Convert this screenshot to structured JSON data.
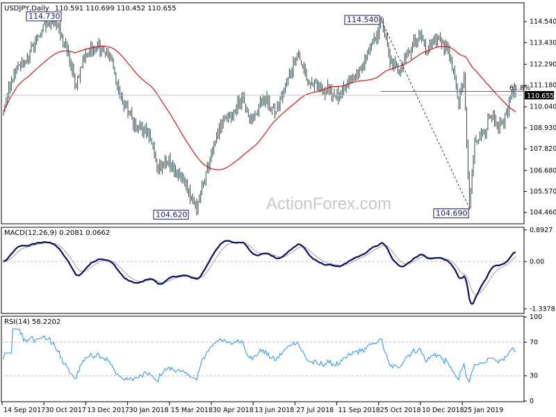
{
  "chart_data": [
    {
      "type": "ohlc",
      "title": "USDJPY,Daily",
      "ohlc_label": "110.591 110.699 110.452 110.655",
      "ylim": [
        103.9,
        115.5
      ],
      "y_ticks": [
        114.54,
        113.43,
        112.29,
        111.18,
        110.04,
        108.93,
        107.82,
        106.68,
        105.57,
        104.46
      ],
      "current_price": 110.655,
      "x_labels": [
        "14 Sep 2017",
        "30 Oct 2017",
        "13 Dec 2017",
        "30 Jan 2018",
        "15 Mar 2018",
        "30 Apr 2018",
        "13 Jun 2018",
        "27 Jul 2018",
        "11 Sep 2018",
        "25 Oct 2018",
        "10 Dec 2018",
        "25 Jan 2019"
      ],
      "price_anchors": [
        {
          "i": 0,
          "v": 109.8
        },
        {
          "i": 8,
          "v": 111.8
        },
        {
          "i": 18,
          "v": 112.6
        },
        {
          "i": 26,
          "v": 113.8
        },
        {
          "i": 34,
          "v": 114.5
        },
        {
          "i": 38,
          "v": 114.73
        },
        {
          "i": 48,
          "v": 113.0
        },
        {
          "i": 54,
          "v": 111.2
        },
        {
          "i": 62,
          "v": 112.8
        },
        {
          "i": 72,
          "v": 113.3
        },
        {
          "i": 80,
          "v": 112.7
        },
        {
          "i": 90,
          "v": 110.3
        },
        {
          "i": 100,
          "v": 109.0
        },
        {
          "i": 110,
          "v": 108.6
        },
        {
          "i": 116,
          "v": 106.8
        },
        {
          "i": 124,
          "v": 107.2
        },
        {
          "i": 134,
          "v": 106.2
        },
        {
          "i": 140,
          "v": 105.6
        },
        {
          "i": 146,
          "v": 104.62
        },
        {
          "i": 154,
          "v": 106.8
        },
        {
          "i": 164,
          "v": 109.2
        },
        {
          "i": 172,
          "v": 109.4
        },
        {
          "i": 180,
          "v": 110.6
        },
        {
          "i": 188,
          "v": 109.3
        },
        {
          "i": 196,
          "v": 110.5
        },
        {
          "i": 206,
          "v": 109.8
        },
        {
          "i": 214,
          "v": 111.3
        },
        {
          "i": 222,
          "v": 112.9
        },
        {
          "i": 230,
          "v": 111.4
        },
        {
          "i": 238,
          "v": 111.0
        },
        {
          "i": 246,
          "v": 110.9
        },
        {
          "i": 254,
          "v": 110.5
        },
        {
          "i": 262,
          "v": 111.4
        },
        {
          "i": 270,
          "v": 112.0
        },
        {
          "i": 280,
          "v": 113.6
        },
        {
          "i": 286,
          "v": 114.54
        },
        {
          "i": 292,
          "v": 112.4
        },
        {
          "i": 298,
          "v": 112.0
        },
        {
          "i": 306,
          "v": 113.0
        },
        {
          "i": 314,
          "v": 113.9
        },
        {
          "i": 320,
          "v": 113.0
        },
        {
          "i": 326,
          "v": 113.7
        },
        {
          "i": 332,
          "v": 113.4
        },
        {
          "i": 338,
          "v": 112.6
        },
        {
          "i": 344,
          "v": 110.2
        },
        {
          "i": 348,
          "v": 111.6
        },
        {
          "i": 352,
          "v": 104.69
        },
        {
          "i": 356,
          "v": 108.4
        },
        {
          "i": 362,
          "v": 108.6
        },
        {
          "i": 368,
          "v": 109.5
        },
        {
          "i": 374,
          "v": 108.8
        },
        {
          "i": 380,
          "v": 109.6
        },
        {
          "i": 384,
          "v": 110.8
        },
        {
          "i": 387,
          "v": 110.655
        }
      ],
      "sma": {
        "name": "55 SMA",
        "color": "#e00000"
      },
      "bar_color": "#2e4a4a",
      "annotations": {
        "high_label": "114.730",
        "low_label_1": "104.620",
        "high_label_2": "114.540",
        "low_label_2": "104.690",
        "fib_label": "61.8%",
        "fib_level": 110.86
      },
      "watermark": "ActionForex.com"
    },
    {
      "type": "line",
      "title": "MACD(12,26,9) 0.2081 0.0662",
      "ylim": [
        -1.45,
        0.95
      ],
      "y_ticks": [
        0.8927,
        0.0,
        -1.3378
      ],
      "y_tick_labels": [
        "0.8927",
        "0.00",
        "-1.3378"
      ],
      "series": [
        {
          "name": "MACD",
          "color": "#0a0a6a",
          "width": 2.2
        },
        {
          "name": "Signal",
          "color": "#a0a0a0",
          "width": 1
        }
      ]
    },
    {
      "type": "line",
      "title": "RSI(14) 58.2202",
      "ylim": [
        0,
        100
      ],
      "y_ticks": [
        100,
        70,
        30,
        0
      ],
      "series": [
        {
          "name": "RSI",
          "color": "#1e90ff",
          "width": 1
        }
      ]
    }
  ]
}
